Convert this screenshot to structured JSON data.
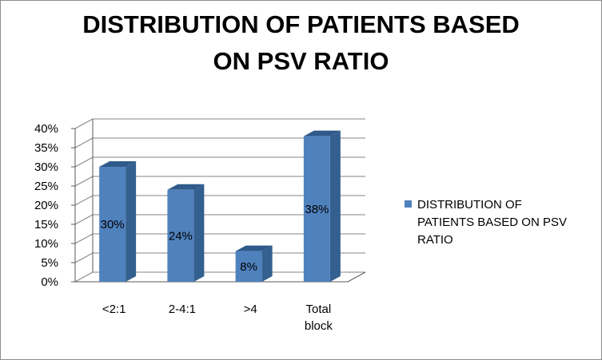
{
  "chart_data": {
    "type": "bar",
    "title_lines": [
      "DISTRIBUTION OF PATIENTS BASED",
      "ON PSV RATIO"
    ],
    "categories": [
      "<2:1",
      "2-4:1",
      ">4",
      "Total block"
    ],
    "category_lines": [
      [
        "<2:1"
      ],
      [
        "2-4:1"
      ],
      [
        ">4"
      ],
      [
        "Total",
        "block"
      ]
    ],
    "series": [
      {
        "name": "DISTRIBUTION OF PATIENTS BASED ON PSV RATIO",
        "values": [
          30,
          24,
          8,
          38
        ],
        "data_labels": [
          "30%",
          "24%",
          "8%",
          "38%"
        ]
      }
    ],
    "yticks": [
      "0%",
      "5%",
      "10%",
      "15%",
      "20%",
      "25%",
      "30%",
      "35%",
      "40%"
    ],
    "ylim": [
      0,
      40
    ],
    "grid": true,
    "legend_position": "right",
    "colors": {
      "bar_front": "#4f81bd",
      "bar_side": "#34608f",
      "bar_top": "#2f5a8a",
      "grid": "#868686",
      "wall_edge": "#5a5a5a"
    }
  }
}
